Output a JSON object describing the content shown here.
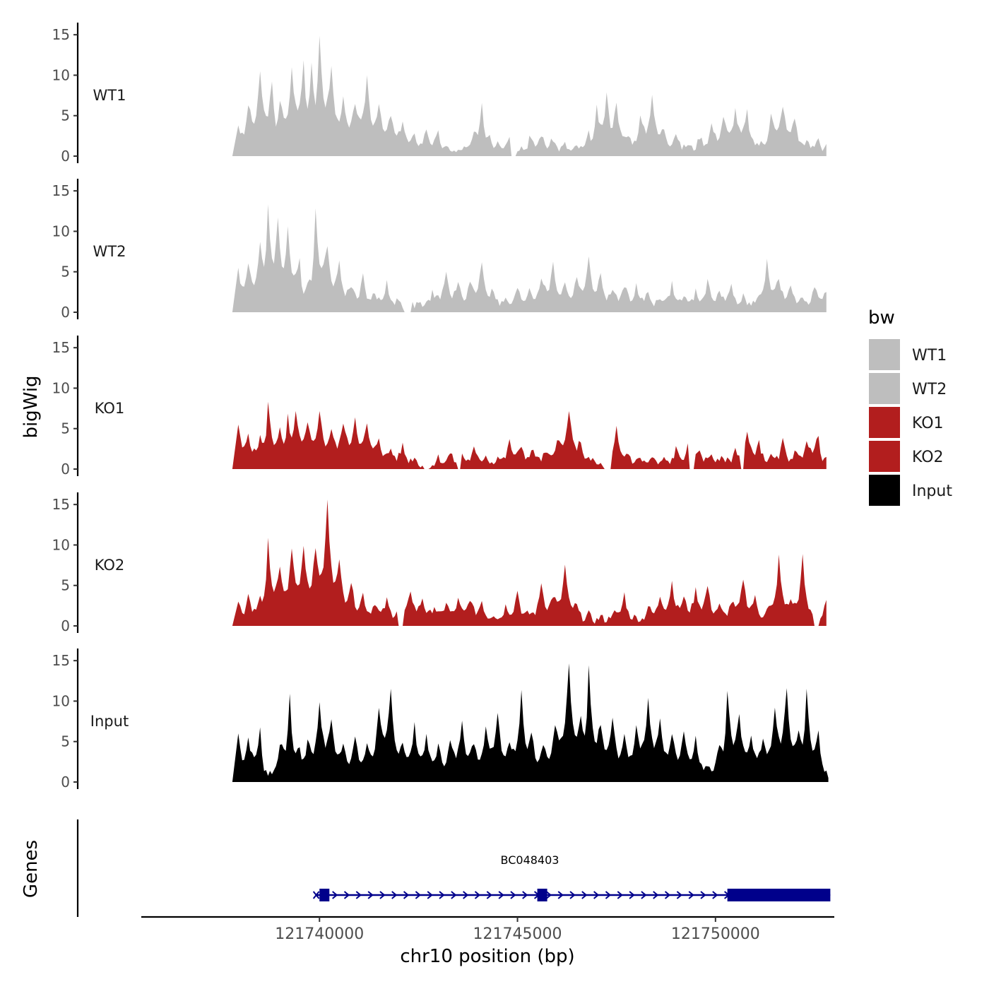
{
  "chart_data": {
    "type": "area",
    "chromosome": "chr10",
    "xlabel": "chr10 position (bp)",
    "ylabel": "bigWig",
    "genes_label": "Genes",
    "xlim": [
      121735500,
      121753000
    ],
    "x_ticks": [
      121740000,
      121745000,
      121750000
    ],
    "x_tick_labels": [
      "121740000",
      "121745000",
      "121750000"
    ],
    "ylim": [
      0,
      16
    ],
    "y_ticks": [
      0,
      5,
      10,
      15
    ],
    "y_tick_labels": [
      "0",
      "5",
      "10",
      "15"
    ],
    "x_start": 121737800,
    "x_step": 50,
    "legend": {
      "title": "bw",
      "position": "right",
      "entries": [
        {
          "label": "WT1",
          "color": "#bebebe"
        },
        {
          "label": "WT2",
          "color": "#bebebe"
        },
        {
          "label": "KO1",
          "color": "#b21e1e"
        },
        {
          "label": "KO2",
          "color": "#b21e1e"
        },
        {
          "label": "Input",
          "color": "#000000"
        }
      ]
    },
    "series": [
      {
        "name": "WT1",
        "color": "#bebebe",
        "peaks": [
          [
            121737950,
            3.8
          ],
          [
            121738200,
            6.5
          ],
          [
            121738500,
            10.3
          ],
          [
            121738800,
            9
          ],
          [
            121739000,
            7
          ],
          [
            121739300,
            10.8
          ],
          [
            121739600,
            11.8
          ],
          [
            121739800,
            12
          ],
          [
            121740000,
            14.5
          ],
          [
            121740300,
            11
          ],
          [
            121740600,
            7
          ],
          [
            121740900,
            6.8
          ],
          [
            121741200,
            10
          ],
          [
            121741500,
            6.5
          ],
          [
            121741800,
            5.2
          ],
          [
            121742100,
            4.5
          ],
          [
            121742400,
            2.5
          ],
          [
            121742700,
            3.5
          ],
          [
            121743000,
            2.8
          ],
          [
            121743300,
            1
          ],
          [
            121743600,
            1
          ],
          [
            121743900,
            3
          ],
          [
            121744100,
            7
          ],
          [
            121744300,
            3
          ],
          [
            121744500,
            2.2
          ],
          [
            121744800,
            2.8
          ],
          [
            121745100,
            1.2
          ],
          [
            121745300,
            2.5
          ],
          [
            121745600,
            2.8
          ],
          [
            121745900,
            2.2
          ],
          [
            121746200,
            1.5
          ],
          [
            121746500,
            1.2
          ],
          [
            121746800,
            2.8
          ],
          [
            121747000,
            6
          ],
          [
            121747250,
            7.8
          ],
          [
            121747500,
            7
          ],
          [
            121747800,
            2.5
          ],
          [
            121748100,
            4.8
          ],
          [
            121748400,
            7.8
          ],
          [
            121748700,
            3.5
          ],
          [
            121749000,
            3
          ],
          [
            121749300,
            1.5
          ],
          [
            121749600,
            2.5
          ],
          [
            121749900,
            4
          ],
          [
            121750200,
            5
          ],
          [
            121750500,
            5.8
          ],
          [
            121750800,
            5.5
          ],
          [
            121751100,
            1.5
          ],
          [
            121751400,
            5.5
          ],
          [
            121751700,
            6.5
          ],
          [
            121752000,
            5
          ],
          [
            121752300,
            1.8
          ],
          [
            121752600,
            2.5
          ],
          [
            121752800,
            1.5
          ]
        ],
        "gaps": [
          [
            121744850,
            121744950
          ]
        ]
      },
      {
        "name": "WT2",
        "color": "#bebebe",
        "peaks": [
          [
            121737950,
            5.5
          ],
          [
            121738200,
            6.2
          ],
          [
            121738500,
            8.5
          ],
          [
            121738700,
            13.5
          ],
          [
            121738950,
            11.5
          ],
          [
            121739200,
            10.5
          ],
          [
            121739500,
            6.5
          ],
          [
            121739700,
            4
          ],
          [
            121739900,
            13
          ],
          [
            121740200,
            8.5
          ],
          [
            121740500,
            6
          ],
          [
            121740800,
            3.5
          ],
          [
            121741100,
            4.5
          ],
          [
            121741400,
            2.2
          ],
          [
            121741700,
            3.8
          ],
          [
            121742000,
            1.5
          ],
          [
            121742200,
            2.5
          ],
          [
            121742500,
            1
          ],
          [
            121742850,
            2.5
          ],
          [
            121743200,
            4.8
          ],
          [
            121743500,
            3.5
          ],
          [
            121743800,
            3.8
          ],
          [
            121744100,
            6.5
          ],
          [
            121744400,
            2.8
          ],
          [
            121744700,
            1.5
          ],
          [
            121745000,
            3
          ],
          [
            121745300,
            3
          ],
          [
            121745600,
            4.5
          ],
          [
            121745900,
            6
          ],
          [
            121746200,
            3.5
          ],
          [
            121746500,
            4.5
          ],
          [
            121746800,
            6.5
          ],
          [
            121747100,
            4.5
          ],
          [
            121747400,
            2.8
          ],
          [
            121747700,
            3.5
          ],
          [
            121748000,
            3.2
          ],
          [
            121748300,
            2.5
          ],
          [
            121748600,
            2
          ],
          [
            121748900,
            3.5
          ],
          [
            121749200,
            2
          ],
          [
            121749500,
            2.5
          ],
          [
            121749800,
            3.8
          ],
          [
            121750100,
            2.8
          ],
          [
            121750400,
            3.2
          ],
          [
            121750700,
            2.2
          ],
          [
            121751000,
            1.5
          ],
          [
            121751300,
            6.5
          ],
          [
            121751600,
            4.2
          ],
          [
            121751900,
            3
          ],
          [
            121752200,
            2
          ],
          [
            121752500,
            3.5
          ],
          [
            121752800,
            2.5
          ]
        ],
        "gaps": [
          [
            121742150,
            121742300
          ]
        ]
      },
      {
        "name": "KO1",
        "color": "#b21e1e",
        "peaks": [
          [
            121737950,
            5.5
          ],
          [
            121738200,
            4.5
          ],
          [
            121738500,
            4
          ],
          [
            121738700,
            8.2
          ],
          [
            121739000,
            5
          ],
          [
            121739200,
            6.5
          ],
          [
            121739400,
            7.5
          ],
          [
            121739700,
            5.5
          ],
          [
            121740000,
            7.5
          ],
          [
            121740300,
            5
          ],
          [
            121740600,
            6
          ],
          [
            121740900,
            6.5
          ],
          [
            121741200,
            5.5
          ],
          [
            121741500,
            4
          ],
          [
            121741800,
            2.5
          ],
          [
            121742100,
            3
          ],
          [
            121742400,
            1.5
          ],
          [
            121742700,
            0.8
          ],
          [
            121743000,
            1.5
          ],
          [
            121743300,
            2
          ],
          [
            121743600,
            1.8
          ],
          [
            121743900,
            2.5
          ],
          [
            121744200,
            1.8
          ],
          [
            121744500,
            1.5
          ],
          [
            121744800,
            3.5
          ],
          [
            121745100,
            3
          ],
          [
            121745400,
            2.5
          ],
          [
            121745700,
            2
          ],
          [
            121746000,
            4
          ],
          [
            121746300,
            7.5
          ],
          [
            121746600,
            3.5
          ],
          [
            121746900,
            1.2
          ],
          [
            121747200,
            0.8
          ],
          [
            121747500,
            5
          ],
          [
            121747800,
            2
          ],
          [
            121748100,
            1.5
          ],
          [
            121748400,
            1.5
          ],
          [
            121748700,
            1.2
          ],
          [
            121749000,
            2.5
          ],
          [
            121749300,
            2.8
          ],
          [
            121749600,
            2.5
          ],
          [
            121749900,
            2
          ],
          [
            121750200,
            1.5
          ],
          [
            121750500,
            2.5
          ],
          [
            121750800,
            4.5
          ],
          [
            121751100,
            3.5
          ],
          [
            121751400,
            1.5
          ],
          [
            121751700,
            3.5
          ],
          [
            121752000,
            2
          ],
          [
            121752300,
            3.8
          ],
          [
            121752600,
            4.5
          ],
          [
            121752800,
            1.5
          ]
        ],
        "gaps": [
          [
            121742650,
            121742750
          ],
          [
            121743500,
            121743550
          ],
          [
            121747200,
            121747350
          ],
          [
            121749350,
            121749450
          ],
          [
            121750650,
            121750700
          ]
        ]
      },
      {
        "name": "KO2",
        "color": "#b21e1e",
        "peaks": [
          [
            121737950,
            3
          ],
          [
            121738200,
            4
          ],
          [
            121738500,
            3.5
          ],
          [
            121738700,
            10.5
          ],
          [
            121739000,
            7
          ],
          [
            121739300,
            9.5
          ],
          [
            121739600,
            10
          ],
          [
            121739900,
            9.5
          ],
          [
            121740200,
            15.5
          ],
          [
            121740500,
            8
          ],
          [
            121740800,
            5.5
          ],
          [
            121741100,
            4
          ],
          [
            121741400,
            3
          ],
          [
            121741700,
            3.2
          ],
          [
            121742000,
            2.5
          ],
          [
            121742300,
            4.5
          ],
          [
            121742600,
            3.5
          ],
          [
            121742900,
            2.5
          ],
          [
            121743200,
            3
          ],
          [
            121743500,
            3.2
          ],
          [
            121743800,
            3.5
          ],
          [
            121744100,
            3.2
          ],
          [
            121744400,
            1.5
          ],
          [
            121744700,
            2.5
          ],
          [
            121745000,
            4.5
          ],
          [
            121745300,
            1.5
          ],
          [
            121745600,
            5.5
          ],
          [
            121745900,
            3.8
          ],
          [
            121746200,
            7.5
          ],
          [
            121746500,
            2.5
          ],
          [
            121746800,
            1.5
          ],
          [
            121747100,
            1.2
          ],
          [
            121747400,
            1.8
          ],
          [
            121747700,
            4
          ],
          [
            121748000,
            1
          ],
          [
            121748300,
            2.5
          ],
          [
            121748600,
            3.8
          ],
          [
            121748900,
            5.5
          ],
          [
            121749200,
            3.5
          ],
          [
            121749500,
            4.5
          ],
          [
            121749800,
            5
          ],
          [
            121750100,
            2.5
          ],
          [
            121750400,
            3
          ],
          [
            121750700,
            6
          ],
          [
            121751000,
            3.5
          ],
          [
            121751300,
            2
          ],
          [
            121751600,
            8.5
          ],
          [
            121751900,
            3
          ],
          [
            121752200,
            8.5
          ],
          [
            121752500,
            1
          ],
          [
            121752800,
            3.2
          ]
        ],
        "gaps": [
          [
            121742000,
            121742100
          ],
          [
            121752500,
            121752600
          ]
        ]
      },
      {
        "name": "Input",
        "color": "#000000",
        "peaks": [
          [
            121737950,
            6
          ],
          [
            121738200,
            5.5
          ],
          [
            121738500,
            6.5
          ],
          [
            121738700,
            1
          ],
          [
            121739000,
            5
          ],
          [
            121739250,
            10.5
          ],
          [
            121739500,
            4.5
          ],
          [
            121739700,
            5.5
          ],
          [
            121740000,
            10
          ],
          [
            121740300,
            8
          ],
          [
            121740600,
            5
          ],
          [
            121740900,
            5.5
          ],
          [
            121741200,
            4.5
          ],
          [
            121741500,
            9.5
          ],
          [
            121741800,
            11.2
          ],
          [
            121742100,
            5
          ],
          [
            121742400,
            7
          ],
          [
            121742700,
            5.5
          ],
          [
            121743000,
            4.5
          ],
          [
            121743300,
            5
          ],
          [
            121743600,
            8
          ],
          [
            121743900,
            5
          ],
          [
            121744200,
            7
          ],
          [
            121744500,
            9
          ],
          [
            121744800,
            5
          ],
          [
            121745100,
            11
          ],
          [
            121745350,
            6.5
          ],
          [
            121745650,
            5
          ],
          [
            121745950,
            7
          ],
          [
            121746300,
            14.5
          ],
          [
            121746600,
            8
          ],
          [
            121746800,
            14
          ],
          [
            121747100,
            7
          ],
          [
            121747400,
            8
          ],
          [
            121747700,
            5.5
          ],
          [
            121748000,
            7
          ],
          [
            121748300,
            10.5
          ],
          [
            121748600,
            7.5
          ],
          [
            121748900,
            6
          ],
          [
            121749200,
            6.5
          ],
          [
            121749500,
            5.5
          ],
          [
            121749800,
            2.2
          ],
          [
            121750100,
            5
          ],
          [
            121750300,
            11.5
          ],
          [
            121750600,
            8
          ],
          [
            121750900,
            6
          ],
          [
            121751200,
            5.5
          ],
          [
            121751500,
            9
          ],
          [
            121751800,
            11.5
          ],
          [
            121752100,
            6.5
          ],
          [
            121752300,
            11.5
          ],
          [
            121752600,
            6
          ],
          [
            121752850,
            0.5
          ]
        ]
      }
    ],
    "gene": {
      "name": "BC048403",
      "strand": "+",
      "start": 121739900,
      "end": 121752900,
      "exons": [
        [
          121740000,
          121740250
        ],
        [
          121745500,
          121745750
        ],
        [
          121750300,
          121752900
        ]
      ],
      "color": "#00008b"
    }
  }
}
